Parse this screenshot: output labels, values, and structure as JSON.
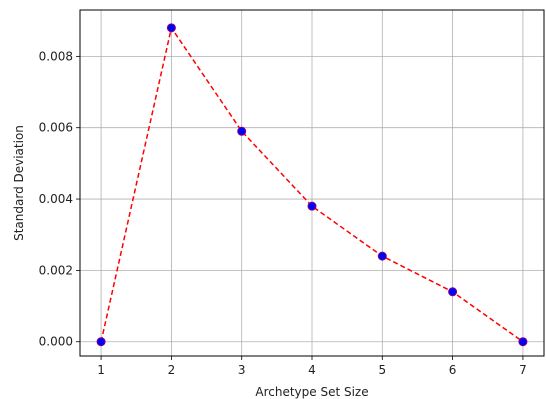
{
  "chart_data": {
    "type": "line",
    "title": "",
    "xlabel": "Archetype Set Size",
    "ylabel": "Standard Deviation",
    "xlim": [
      0.7,
      7.3
    ],
    "ylim": [
      -0.0004,
      0.0093
    ],
    "grid": true,
    "x_ticks": [
      1,
      2,
      3,
      4,
      5,
      6,
      7
    ],
    "y_ticks": [
      0.0,
      0.002,
      0.004,
      0.006,
      0.008
    ],
    "x_tick_labels": [
      "1",
      "2",
      "3",
      "4",
      "5",
      "6",
      "7"
    ],
    "y_tick_labels": [
      "0.000",
      "0.002",
      "0.004",
      "0.006",
      "0.008"
    ],
    "series": [
      {
        "x": [
          1,
          2,
          3,
          4,
          5,
          6,
          7
        ],
        "y": [
          0.0,
          0.0088,
          0.0059,
          0.0038,
          0.0024,
          0.0014,
          0.0
        ],
        "line_color": "#ff0000",
        "line_style": "dashed",
        "marker_color": "#0000ff",
        "marker_edge_color": "#800080"
      }
    ]
  }
}
